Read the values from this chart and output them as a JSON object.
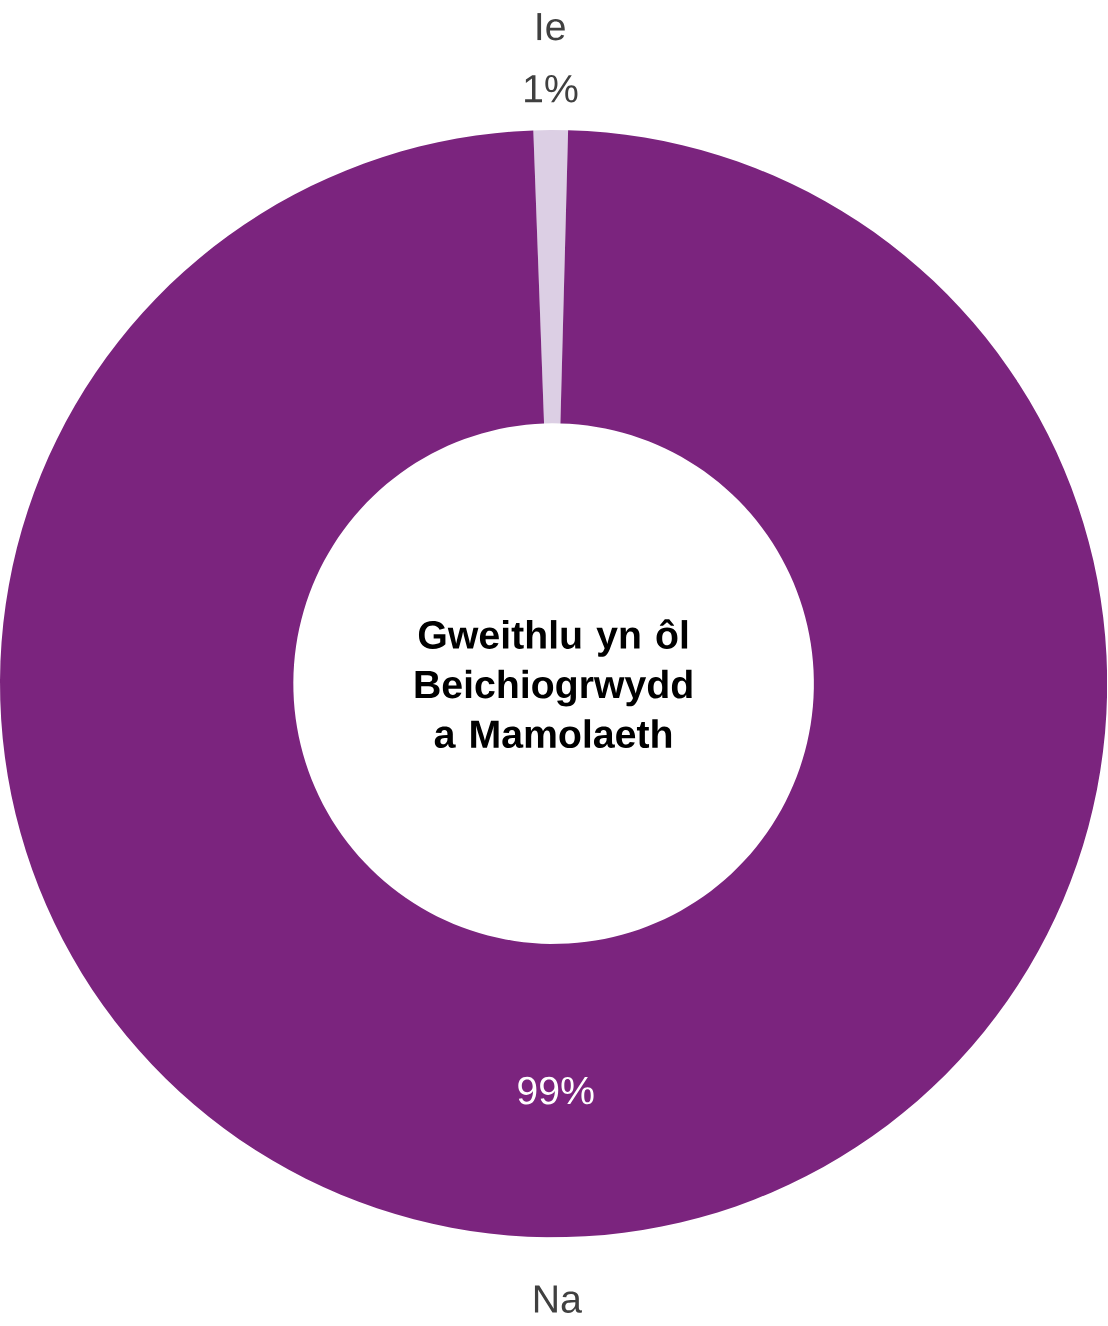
{
  "chart_data": {
    "type": "donut",
    "title": "Gweithlu yn ôl Beichiogrwydd a Mamolaeth",
    "categories": [
      "Ie",
      "Na"
    ],
    "values": [
      1,
      99
    ],
    "value_labels": [
      "1%",
      "99%"
    ],
    "colors": [
      "#dccfe4",
      "#7b247e"
    ]
  }
}
